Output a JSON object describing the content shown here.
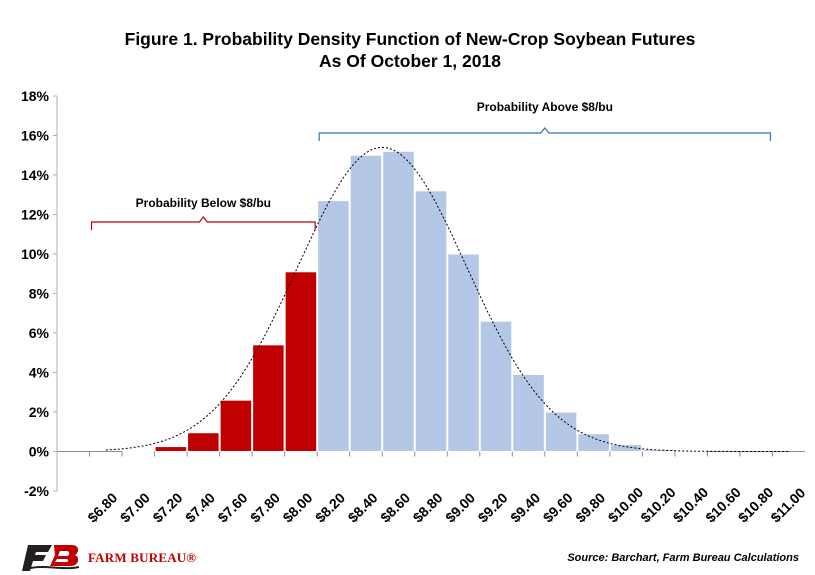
{
  "chart_data": {
    "type": "bar",
    "title": "Figure 1. Probability Density Function of New-Crop Soybean Futures",
    "subtitle": "As Of October 1, 2018",
    "categories": [
      "$6.80",
      "$7.00",
      "$7.20",
      "$7.40",
      "$7.60",
      "$7.80",
      "$8.00",
      "$8.20",
      "$8.40",
      "$8.60",
      "$8.80",
      "$9.00",
      "$9.20",
      "$9.40",
      "$9.60",
      "$9.80",
      "$10.00",
      "$10.20",
      "$10.40",
      "$10.60",
      "$10.80",
      "$11.00"
    ],
    "series": [
      {
        "values": [
          0.0,
          0.05,
          0.25,
          0.95,
          2.6,
          5.4,
          9.1,
          12.7,
          15.0,
          15.2,
          13.2,
          10.0,
          6.6,
          3.9,
          2.0,
          0.9,
          0.35,
          0.1,
          0.03,
          0.0,
          0.0,
          0.0
        ],
        "below_color": "#c00000",
        "above_color": "#b4c7e7",
        "below_through_index": 6
      }
    ],
    "density_curve": {
      "mean": 8.5,
      "std": 0.52,
      "peak": 15.4,
      "style": "dotted"
    },
    "ylim": [
      -2,
      18
    ],
    "yticks": [
      -2,
      0,
      2,
      4,
      6,
      8,
      10,
      12,
      14,
      16,
      18
    ],
    "ytick_suffix": "%",
    "grid": false,
    "annotations": [
      {
        "text": "Probability Below $8/bu",
        "from_index": 0,
        "to_index": 6,
        "color": "#c00000"
      },
      {
        "text": "Probability Above $8/bu",
        "from_index": 7,
        "to_index": 20,
        "color": "#2e75b6"
      }
    ]
  },
  "footer": {
    "logo_text": "FARM BUREAU®",
    "source": "Source: Barchart, Farm Bureau Calculations"
  },
  "colors": {
    "brand_red": "#c00000",
    "bracket_blue": "#2e75b6"
  }
}
